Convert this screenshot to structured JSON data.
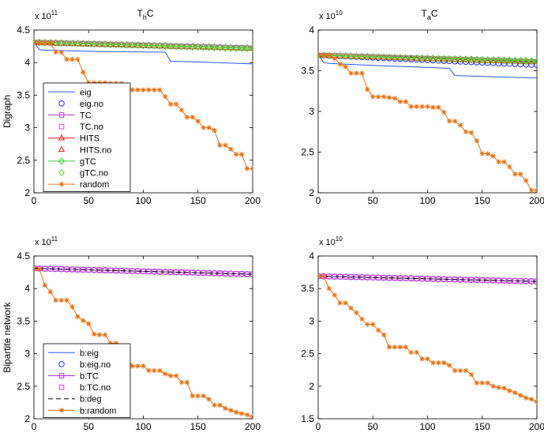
{
  "chart_data": [
    {
      "type": "line",
      "title_main": "T",
      "title_sub": "h",
      "title_tail": "C",
      "exp_base": "x 10",
      "exp_power": "11",
      "ylabel": "Digraph",
      "xlabel": "",
      "xlim": [
        0,
        200
      ],
      "ylim": [
        2,
        4.5
      ],
      "scale": 100000000000.0,
      "xticks": [
        "0",
        "50",
        "100",
        "150",
        "200"
      ],
      "xtick_values": [
        0,
        50,
        100,
        150,
        200
      ],
      "yticks": [
        "2",
        "2.5",
        "3",
        "3.5",
        "4",
        "4.5"
      ],
      "ytick_values": [
        2,
        2.5,
        3,
        3.5,
        4,
        4.5
      ],
      "legend": [
        "eig",
        "eig.no",
        "TC",
        "TC.no",
        "HITS",
        "HITS.no",
        "gTC",
        "gTC.no",
        "random"
      ],
      "series": [
        {
          "name": "eig",
          "color": "#2b5cff",
          "style": "line",
          "marker": "none",
          "x": [
            0,
            5,
            10,
            60,
            120,
            125,
            150,
            200
          ],
          "y": [
            4.31,
            4.2,
            4.19,
            4.17,
            4.16,
            4.02,
            4.01,
            3.98
          ]
        },
        {
          "name": "eig.no",
          "color": "#2b2bff",
          "style": "none",
          "marker": "circle",
          "x": [
            0,
            200
          ],
          "y": [
            4.31,
            4.22
          ]
        },
        {
          "name": "TC",
          "color": "#c040c0",
          "style": "line",
          "marker": "square",
          "x": [
            0,
            200
          ],
          "y": [
            4.31,
            4.22
          ]
        },
        {
          "name": "TC.no",
          "color": "#d050d0",
          "style": "none",
          "marker": "square",
          "x": [
            0,
            200
          ],
          "y": [
            4.31,
            4.22
          ]
        },
        {
          "name": "HITS",
          "color": "#e02020",
          "style": "line",
          "marker": "triangle",
          "x": [
            0,
            200
          ],
          "y": [
            4.31,
            4.22
          ]
        },
        {
          "name": "HITS.no",
          "color": "#e02020",
          "style": "none",
          "marker": "triangle",
          "x": [
            0,
            200
          ],
          "y": [
            4.31,
            4.22
          ]
        },
        {
          "name": "gTC",
          "color": "#33cc33",
          "style": "line",
          "marker": "diamond",
          "x": [
            0,
            200
          ],
          "y": [
            4.31,
            4.22
          ]
        },
        {
          "name": "gTC.no",
          "color": "#66dd22",
          "style": "none",
          "marker": "diamond",
          "x": [
            0,
            200
          ],
          "y": [
            4.31,
            4.21
          ]
        },
        {
          "name": "random",
          "color": "#e87010",
          "style": "line",
          "marker": "star",
          "x": [
            0,
            5,
            10,
            15,
            20,
            25,
            30,
            35,
            40,
            45,
            50,
            55,
            60,
            65,
            70,
            75,
            80,
            85,
            90,
            95,
            100,
            105,
            110,
            115,
            120,
            125,
            130,
            135,
            140,
            145,
            150,
            155,
            160,
            165,
            170,
            175,
            180,
            185,
            190,
            195,
            200
          ],
          "y": [
            4.3,
            4.3,
            4.3,
            4.3,
            4.16,
            4.16,
            4.05,
            4.05,
            4.05,
            3.85,
            3.69,
            3.69,
            3.69,
            3.69,
            3.68,
            3.68,
            3.68,
            3.58,
            3.58,
            3.58,
            3.58,
            3.58,
            3.58,
            3.58,
            3.48,
            3.36,
            3.36,
            3.27,
            3.16,
            3.16,
            3.1,
            3.0,
            3.0,
            2.96,
            2.73,
            2.73,
            2.67,
            2.59,
            2.59,
            2.37,
            2.37
          ]
        }
      ]
    },
    {
      "type": "line",
      "title_main": "T",
      "title_sub": "a",
      "title_tail": "C",
      "exp_base": "x 10",
      "exp_power": "10",
      "ylabel": "",
      "xlabel": "",
      "xlim": [
        0,
        200
      ],
      "ylim": [
        2,
        4
      ],
      "scale": 10000000000.0,
      "xticks": [
        "0",
        "50",
        "100",
        "150",
        "200"
      ],
      "xtick_values": [
        0,
        50,
        100,
        150,
        200
      ],
      "yticks": [
        "2",
        "2.5",
        "3",
        "3.5",
        "4"
      ],
      "ytick_values": [
        2,
        2.5,
        3,
        3.5,
        4
      ],
      "legend": [],
      "series": [
        {
          "name": "eig",
          "color": "#2b5cff",
          "style": "line",
          "marker": "none",
          "x": [
            0,
            5,
            10,
            60,
            120,
            125,
            150,
            200
          ],
          "y": [
            3.69,
            3.6,
            3.59,
            3.56,
            3.53,
            3.44,
            3.43,
            3.41
          ]
        },
        {
          "name": "eig.no",
          "color": "#2b2bff",
          "style": "none",
          "marker": "circle",
          "x": [
            0,
            200
          ],
          "y": [
            3.69,
            3.57
          ]
        },
        {
          "name": "TC",
          "color": "#c040c0",
          "style": "line",
          "marker": "square",
          "x": [
            0,
            200
          ],
          "y": [
            3.69,
            3.61
          ]
        },
        {
          "name": "TC.no",
          "color": "#d050d0",
          "style": "none",
          "marker": "square",
          "x": [
            0,
            200
          ],
          "y": [
            3.69,
            3.61
          ]
        },
        {
          "name": "HITS",
          "color": "#e02020",
          "style": "line",
          "marker": "triangle",
          "x": [
            0,
            200
          ],
          "y": [
            3.69,
            3.61
          ]
        },
        {
          "name": "HITS.no",
          "color": "#e02020",
          "style": "none",
          "marker": "triangle",
          "x": [
            0,
            200
          ],
          "y": [
            3.69,
            3.61
          ]
        },
        {
          "name": "gTC",
          "color": "#33cc33",
          "style": "line",
          "marker": "diamond",
          "x": [
            0,
            200
          ],
          "y": [
            3.69,
            3.62
          ]
        },
        {
          "name": "gTC.no",
          "color": "#66dd22",
          "style": "none",
          "marker": "diamond",
          "x": [
            0,
            200
          ],
          "y": [
            3.69,
            3.61
          ]
        },
        {
          "name": "random",
          "color": "#e87010",
          "style": "line",
          "marker": "star",
          "x": [
            0,
            5,
            10,
            15,
            20,
            25,
            30,
            35,
            40,
            45,
            50,
            55,
            60,
            65,
            70,
            75,
            80,
            85,
            90,
            95,
            100,
            105,
            110,
            115,
            120,
            125,
            130,
            135,
            140,
            145,
            150,
            155,
            160,
            165,
            170,
            175,
            180,
            185,
            190,
            195,
            200
          ],
          "y": [
            3.69,
            3.69,
            3.69,
            3.65,
            3.58,
            3.55,
            3.47,
            3.47,
            3.47,
            3.27,
            3.18,
            3.18,
            3.18,
            3.17,
            3.16,
            3.12,
            3.12,
            3.06,
            3.06,
            3.06,
            3.06,
            3.05,
            3.05,
            2.99,
            2.88,
            2.88,
            2.83,
            2.75,
            2.74,
            2.64,
            2.48,
            2.48,
            2.45,
            2.38,
            2.38,
            2.32,
            2.23,
            2.23,
            2.15,
            2.03,
            2.03
          ]
        }
      ]
    },
    {
      "type": "line",
      "title_main": "",
      "title_sub": "",
      "title_tail": "",
      "exp_base": "x 10",
      "exp_power": "11",
      "ylabel": "Bipartite network",
      "xlabel": "",
      "xlim": [
        0,
        200
      ],
      "ylim": [
        2,
        4.5
      ],
      "scale": 100000000000.0,
      "xticks": [
        "0",
        "50",
        "100",
        "150",
        "200"
      ],
      "xtick_values": [
        0,
        50,
        100,
        150,
        200
      ],
      "yticks": [
        "2",
        "2.5",
        "3",
        "3.5",
        "4",
        "4.5"
      ],
      "ytick_values": [
        2,
        2.5,
        3,
        3.5,
        4,
        4.5
      ],
      "legend": [
        "b:eig",
        "b:eig.no",
        "b:TC",
        "b:TC.no",
        "b:deg",
        "b:random"
      ],
      "series": [
        {
          "name": "b:eig",
          "color": "#2b5cff",
          "style": "line",
          "marker": "none",
          "x": [
            0,
            200
          ],
          "y": [
            4.31,
            4.22
          ]
        },
        {
          "name": "b:eig.no",
          "color": "#2b2bff",
          "style": "none",
          "marker": "circle",
          "x": [
            0,
            200
          ],
          "y": [
            4.31,
            4.22
          ]
        },
        {
          "name": "b:TC",
          "color": "#b030d0",
          "style": "line",
          "marker": "square",
          "x": [
            0,
            200
          ],
          "y": [
            4.31,
            4.22
          ]
        },
        {
          "name": "b:TC.no",
          "color": "#d050d0",
          "style": "none",
          "marker": "square",
          "x": [
            0,
            200
          ],
          "y": [
            4.31,
            4.22
          ]
        },
        {
          "name": "b:deg",
          "color": "#000000",
          "style": "dash",
          "marker": "none",
          "x": [
            0,
            200
          ],
          "y": [
            4.31,
            4.22
          ]
        },
        {
          "name": "b:random",
          "color": "#e87010",
          "style": "line",
          "marker": "star",
          "x": [
            0,
            5,
            10,
            15,
            20,
            25,
            30,
            35,
            40,
            45,
            50,
            55,
            60,
            65,
            70,
            75,
            80,
            85,
            90,
            95,
            100,
            105,
            110,
            115,
            120,
            125,
            130,
            135,
            140,
            145,
            150,
            155,
            160,
            165,
            170,
            175,
            180,
            185,
            190,
            195,
            200
          ],
          "y": [
            4.3,
            4.3,
            4.05,
            3.95,
            3.82,
            3.82,
            3.82,
            3.72,
            3.57,
            3.51,
            3.46,
            3.3,
            3.29,
            3.29,
            3.16,
            3.16,
            3.05,
            2.95,
            2.81,
            2.81,
            2.81,
            2.74,
            2.74,
            2.74,
            2.69,
            2.66,
            2.66,
            2.56,
            2.56,
            2.35,
            2.35,
            2.35,
            2.3,
            2.21,
            2.21,
            2.16,
            2.13,
            2.1,
            2.08,
            2.06,
            2.03
          ]
        }
      ]
    },
    {
      "type": "line",
      "title_main": "",
      "title_sub": "",
      "title_tail": "",
      "exp_base": "x 10",
      "exp_power": "10",
      "ylabel": "",
      "xlabel": "",
      "xlim": [
        0,
        200
      ],
      "ylim": [
        1.5,
        4
      ],
      "scale": 10000000000.0,
      "xticks": [
        "0",
        "50",
        "100",
        "150",
        "200"
      ],
      "xtick_values": [
        0,
        50,
        100,
        150,
        200
      ],
      "yticks": [
        "1.5",
        "2",
        "2.5",
        "3",
        "3.5",
        "4"
      ],
      "ytick_values": [
        1.5,
        2,
        2.5,
        3,
        3.5,
        4
      ],
      "legend": [],
      "series": [
        {
          "name": "b:eig",
          "color": "#2b5cff",
          "style": "line",
          "marker": "none",
          "x": [
            0,
            200
          ],
          "y": [
            3.69,
            3.61
          ]
        },
        {
          "name": "b:eig.no",
          "color": "#2b2bff",
          "style": "none",
          "marker": "circle",
          "x": [
            0,
            200
          ],
          "y": [
            3.69,
            3.61
          ]
        },
        {
          "name": "b:TC",
          "color": "#b030d0",
          "style": "line",
          "marker": "square",
          "x": [
            0,
            200
          ],
          "y": [
            3.69,
            3.61
          ]
        },
        {
          "name": "b:TC.no",
          "color": "#d050d0",
          "style": "none",
          "marker": "square",
          "x": [
            0,
            200
          ],
          "y": [
            3.69,
            3.61
          ]
        },
        {
          "name": "b:deg",
          "color": "#000000",
          "style": "dash",
          "marker": "none",
          "x": [
            0,
            200
          ],
          "y": [
            3.69,
            3.61
          ]
        },
        {
          "name": "b:random",
          "color": "#e87010",
          "style": "line",
          "marker": "star",
          "x": [
            0,
            5,
            10,
            15,
            20,
            25,
            30,
            35,
            40,
            45,
            50,
            55,
            60,
            65,
            70,
            75,
            80,
            85,
            90,
            95,
            100,
            105,
            110,
            115,
            120,
            125,
            130,
            135,
            140,
            145,
            150,
            155,
            160,
            165,
            170,
            175,
            180,
            185,
            190,
            195,
            200
          ],
          "y": [
            3.69,
            3.69,
            3.5,
            3.4,
            3.28,
            3.28,
            3.2,
            3.13,
            3.03,
            2.95,
            2.95,
            2.86,
            2.79,
            2.6,
            2.6,
            2.6,
            2.6,
            2.52,
            2.52,
            2.42,
            2.42,
            2.36,
            2.36,
            2.36,
            2.32,
            2.24,
            2.24,
            2.24,
            2.18,
            2.05,
            2.05,
            2.05,
            2.0,
            1.98,
            1.97,
            1.93,
            1.9,
            1.86,
            1.82,
            1.8,
            1.76
          ]
        }
      ]
    }
  ]
}
